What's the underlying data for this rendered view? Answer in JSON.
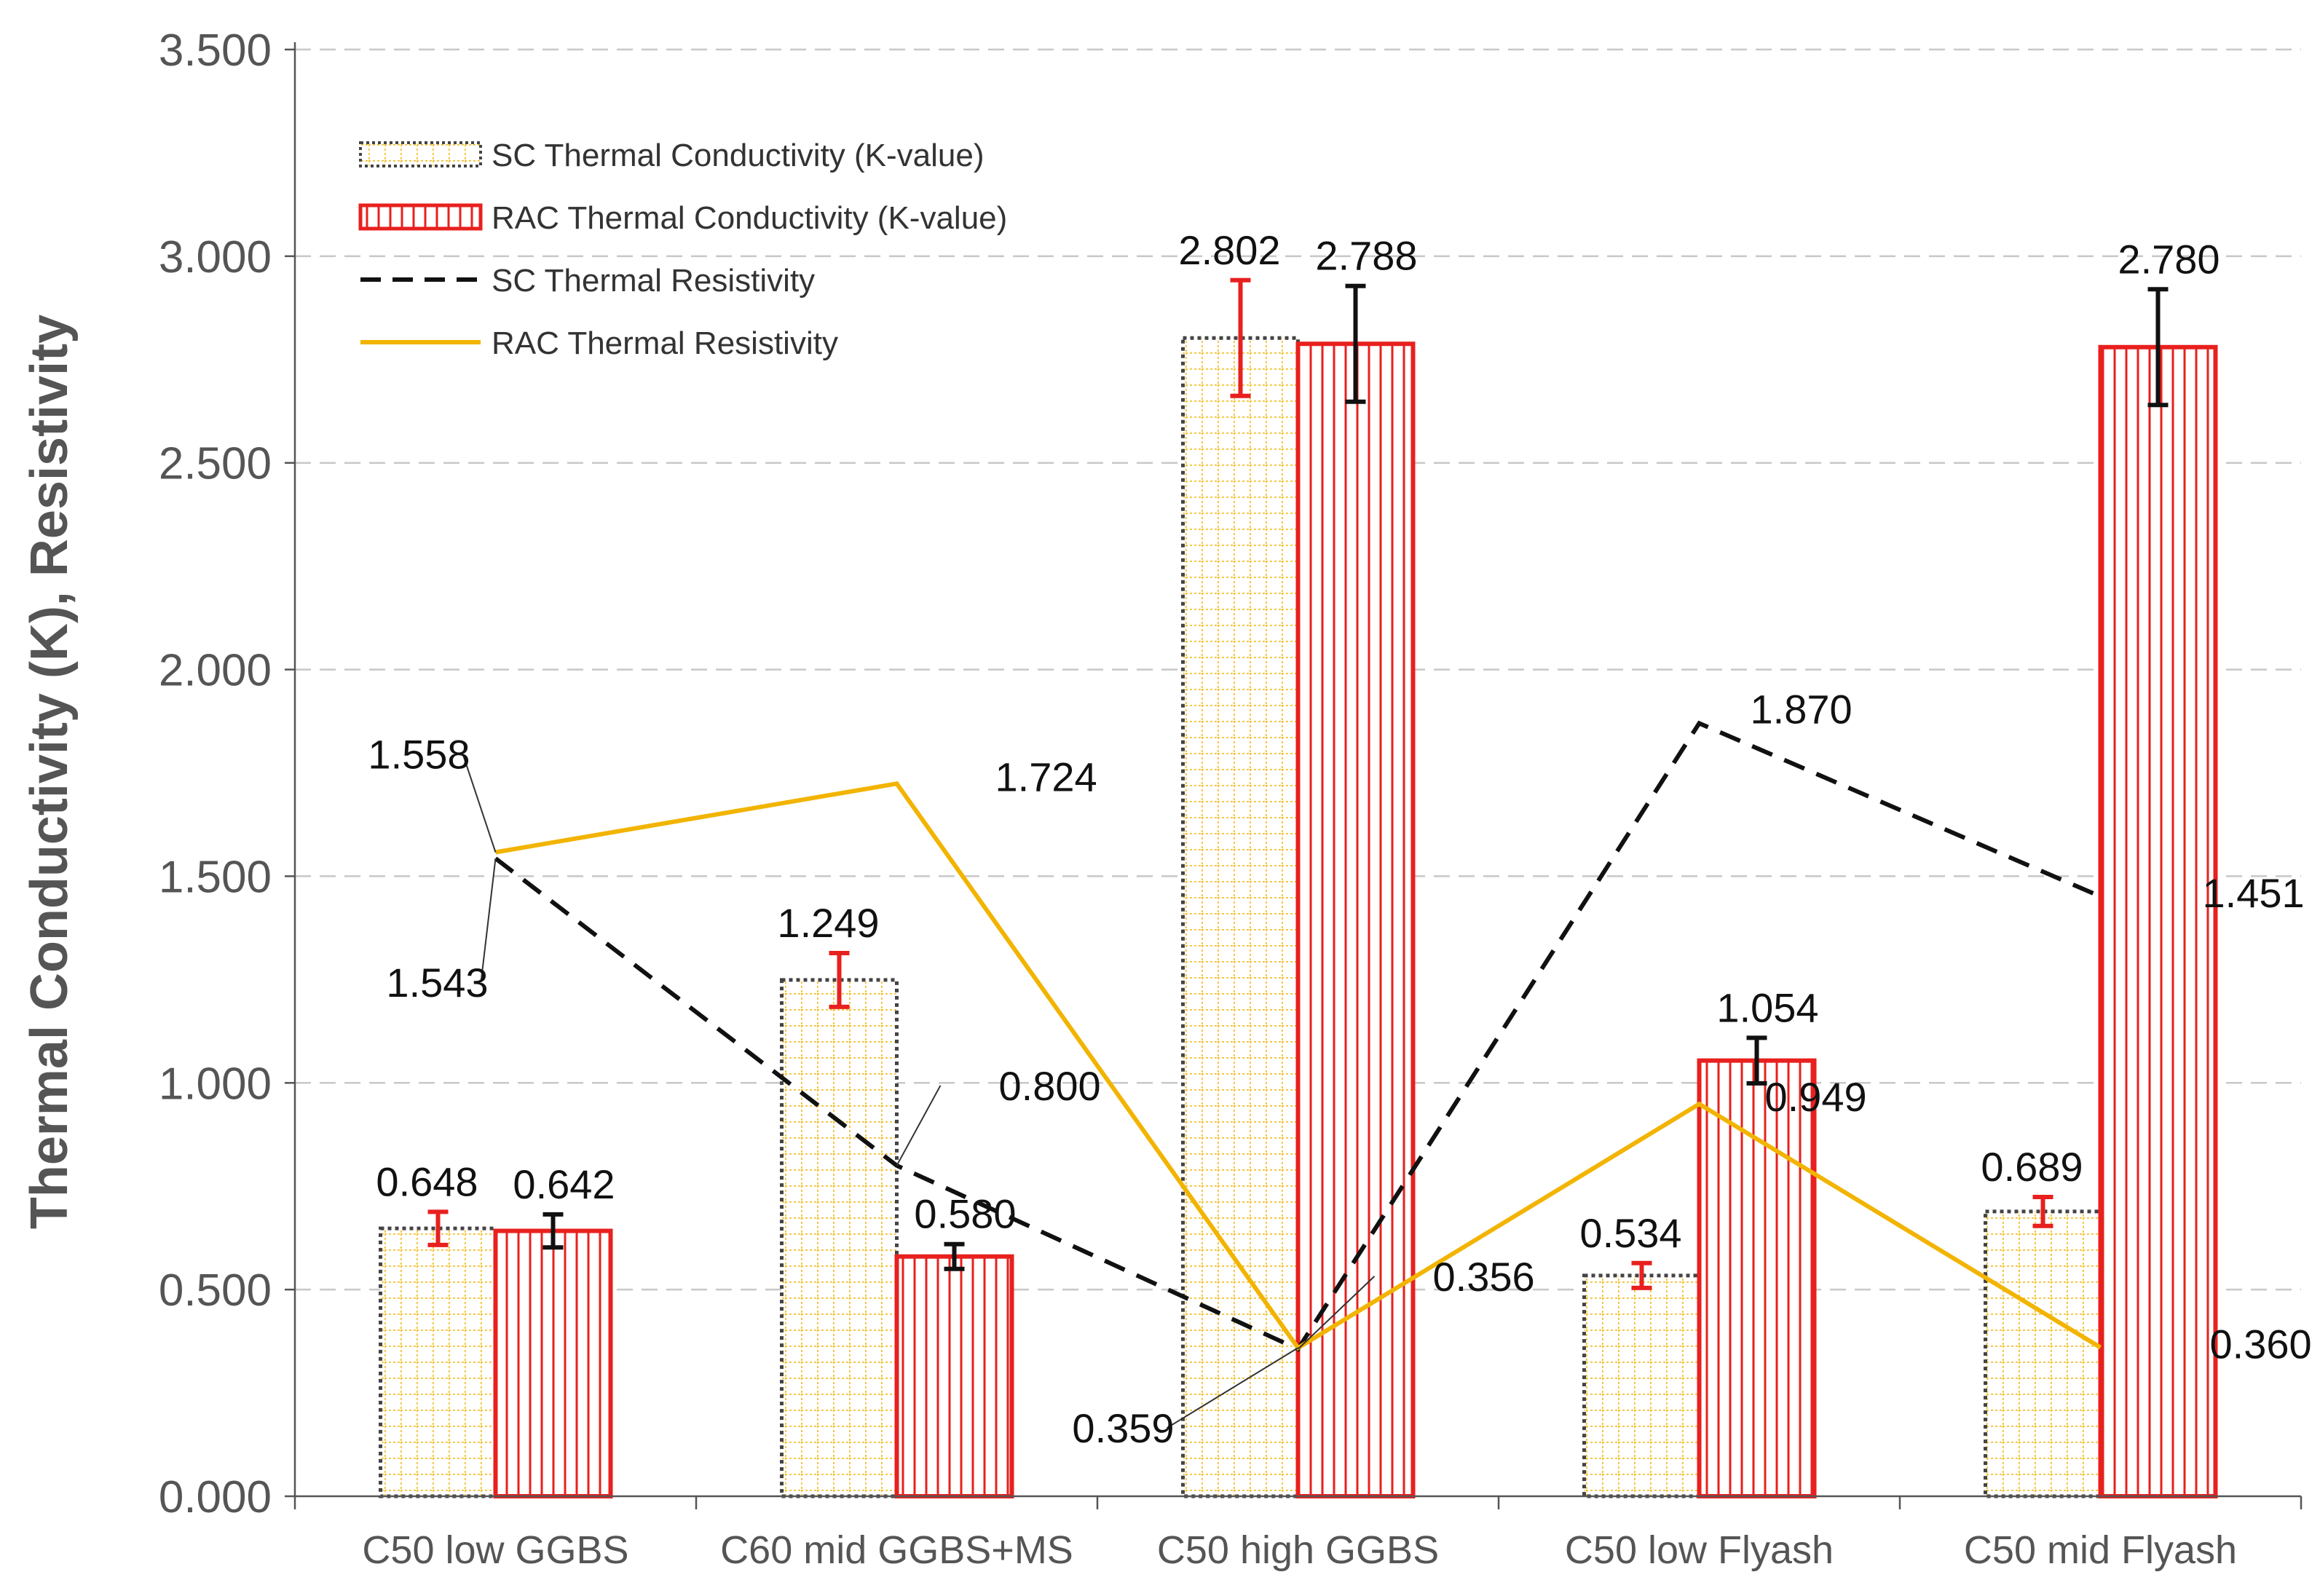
{
  "chart_data": {
    "type": "bar",
    "title": "",
    "xlabel": "",
    "ylabel": "Thermal Conductivity (K), Resistivity",
    "ylim": [
      0,
      3.5
    ],
    "ytick_step": 0.5,
    "ytick_labels": [
      "0.000",
      "0.500",
      "1.000",
      "1.500",
      "2.000",
      "2.500",
      "3.000",
      "3.500"
    ],
    "grid": "horizontal dashed",
    "legend_position": "top-left",
    "categories": [
      "C50 low GGBS",
      "C60 mid GGBS+MS",
      "C50 high GGBS",
      "C50 low Flyash",
      "C50 mid Flyash"
    ],
    "series": [
      {
        "name": "SC Thermal Conductivity (K-value)",
        "kind": "bar",
        "pattern": "dotted-grid",
        "color": "#F2C12E",
        "border": "#444444",
        "errorbar_color": "#E8201E",
        "values": [
          0.648,
          1.249,
          2.802,
          0.534,
          0.689
        ],
        "error": [
          0.04,
          0.065,
          0.14,
          0.03,
          0.035
        ],
        "labels": [
          "0.648",
          "1.249",
          "2.802",
          "0.534",
          "0.689"
        ]
      },
      {
        "name": "RAC Thermal Conductivity (K-value)",
        "kind": "bar",
        "pattern": "vertical-stripes",
        "color": "#E8201E",
        "border": "#E8201E",
        "errorbar_color": "#111111",
        "values": [
          0.642,
          0.58,
          2.788,
          1.054,
          2.78
        ],
        "error": [
          0.04,
          0.03,
          0.14,
          0.055,
          0.14
        ],
        "labels": [
          "0.642",
          "0.580",
          "2.788",
          "1.054",
          "2.780"
        ]
      },
      {
        "name": "SC Thermal Resistivity",
        "kind": "line",
        "style": "dashed",
        "color": "#111111",
        "values": [
          1.543,
          0.8,
          0.356,
          1.87,
          1.451
        ],
        "labels": [
          "1.543",
          "0.800",
          "0.356",
          "1.870",
          "1.451"
        ]
      },
      {
        "name": "RAC Thermal Resistivity",
        "kind": "line",
        "style": "solid",
        "color": "#F2B400",
        "values": [
          1.558,
          1.724,
          0.359,
          0.949,
          0.36
        ],
        "labels": [
          "1.558",
          "1.724",
          "0.359",
          "0.949",
          "0.360"
        ]
      }
    ]
  }
}
